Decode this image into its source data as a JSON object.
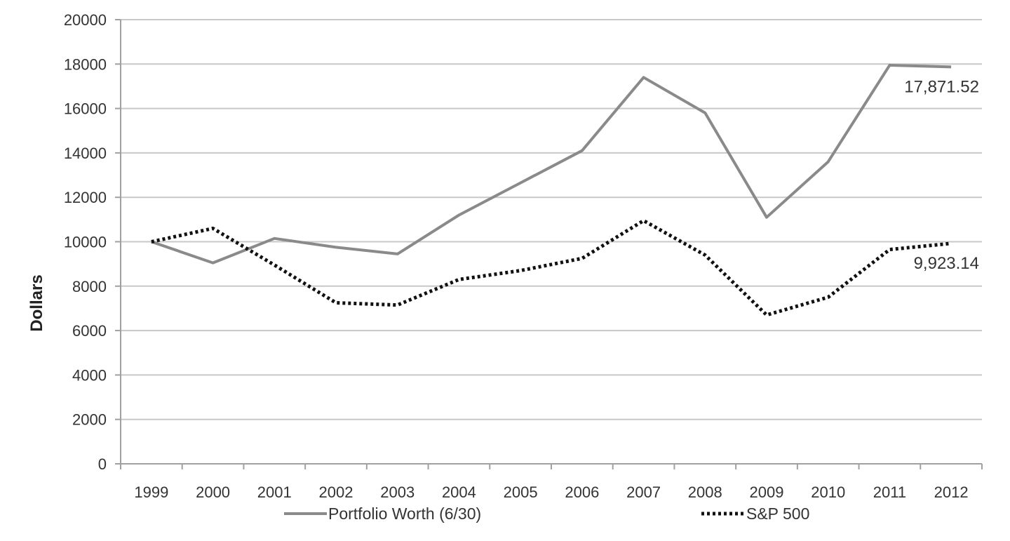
{
  "chart_data": {
    "type": "line",
    "title": "",
    "xlabel": "",
    "ylabel": "Dollars",
    "ylim": [
      0,
      20000
    ],
    "yticks": [
      0,
      2000,
      4000,
      6000,
      8000,
      10000,
      12000,
      14000,
      16000,
      18000,
      20000
    ],
    "categories": [
      "1999",
      "2000",
      "2001",
      "2002",
      "2003",
      "2004",
      "2005",
      "2006",
      "2007",
      "2008",
      "2009",
      "2010",
      "2011",
      "2012"
    ],
    "grid": true,
    "legend_position": "bottom",
    "series": [
      {
        "name": "Portfolio Worth (6/30)",
        "style": "solid",
        "color": "#8a8a8a",
        "values": [
          10000,
          9050,
          10150,
          9750,
          9450,
          11200,
          12650,
          14100,
          17400,
          15800,
          11100,
          13600,
          17950,
          17871.52
        ],
        "end_label": "17,871.52"
      },
      {
        "name": "S&P 500",
        "style": "dotted",
        "color": "#111111",
        "values": [
          10000,
          10600,
          8950,
          7250,
          7150,
          8300,
          8700,
          9250,
          10950,
          9400,
          6700,
          7500,
          9650,
          9923.14
        ],
        "end_label": "9,923.14"
      }
    ]
  }
}
